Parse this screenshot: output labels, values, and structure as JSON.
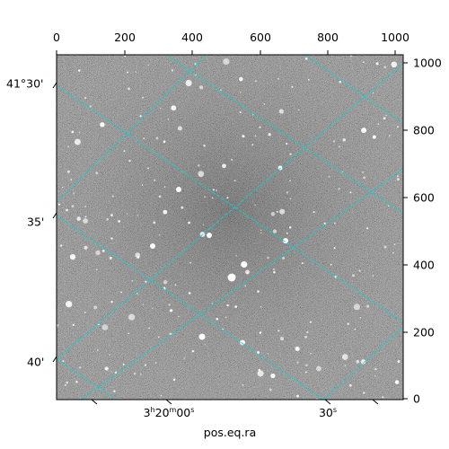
{
  "figure": {
    "xlabel": "pos.eq.ra",
    "top_axis_ticks": [
      "0",
      "200",
      "400",
      "600",
      "800",
      "1000"
    ],
    "right_axis_ticks": [
      "1000",
      "800",
      "600",
      "400",
      "200",
      "0"
    ],
    "dec_ticks": [
      "41°30'",
      "35'",
      "40'"
    ],
    "ra_ticks": [
      {
        "h": "3",
        "h_unit": "h",
        "m": "20",
        "m_unit": "m",
        "s": "00",
        "s_unit": "s"
      },
      {
        "s": "30",
        "s_unit": "s"
      }
    ]
  },
  "colors": {
    "background": "#5a5a5a",
    "grid": "#00d8d8",
    "frame": "#000000"
  }
}
